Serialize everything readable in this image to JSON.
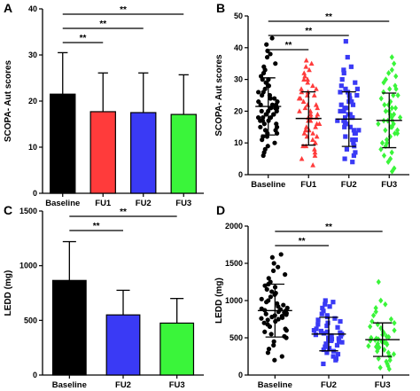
{
  "chart_data": [
    {
      "panel": "A",
      "type": "bar",
      "ylabel": "SCOPA- Aut scores",
      "categories": [
        "Baseline",
        "FU1",
        "FU2",
        "FU3"
      ],
      "values": [
        21.5,
        17.7,
        17.5,
        17.1
      ],
      "errors": [
        9.0,
        8.4,
        8.6,
        8.6
      ],
      "colors": [
        "#000000",
        "#ff3b3b",
        "#3a3af5",
        "#3af53a"
      ],
      "ylim": [
        0,
        40
      ],
      "yticks": [
        0,
        10,
        20,
        30,
        40
      ],
      "significance": [
        {
          "from": 0,
          "to": 1,
          "label": "**"
        },
        {
          "from": 0,
          "to": 2,
          "label": "**"
        },
        {
          "from": 0,
          "to": 3,
          "label": "**"
        }
      ]
    },
    {
      "panel": "B",
      "type": "scatter",
      "ylabel": "SCOPA- Aut scores",
      "categories": [
        "Baseline",
        "FU1",
        "FU2",
        "FU3"
      ],
      "means": [
        21.5,
        17.7,
        17.5,
        17.1
      ],
      "sd": [
        9.0,
        8.4,
        8.6,
        8.6
      ],
      "colors": [
        "#000000",
        "#ff3b3b",
        "#3a3af5",
        "#3af53a"
      ],
      "markers": [
        "circle",
        "triangle",
        "square",
        "diamond"
      ],
      "ylim": [
        0,
        50
      ],
      "yticks": [
        0,
        10,
        20,
        30,
        40,
        50
      ],
      "series": [
        {
          "name": "Baseline",
          "values": [
            43,
            41,
            39,
            38,
            37,
            35,
            34,
            33,
            32,
            31,
            30,
            30,
            29,
            28,
            28,
            27,
            26,
            26,
            25,
            25,
            24,
            24,
            23,
            23,
            22,
            22,
            22,
            21,
            21,
            21,
            20,
            20,
            20,
            19,
            19,
            19,
            18,
            18,
            18,
            17,
            17,
            17,
            16,
            16,
            15,
            15,
            14,
            14,
            13,
            13,
            12,
            12,
            11,
            10,
            9,
            8,
            7,
            6
          ]
        },
        {
          "name": "FU1",
          "values": [
            36,
            35,
            34,
            33,
            32,
            31,
            30,
            30,
            29,
            28,
            27,
            27,
            26,
            26,
            25,
            25,
            24,
            24,
            23,
            22,
            22,
            21,
            21,
            20,
            20,
            19,
            19,
            18,
            18,
            18,
            17,
            17,
            16,
            16,
            15,
            15,
            14,
            14,
            13,
            13,
            12,
            12,
            11,
            10,
            10,
            9,
            9,
            8,
            7,
            6,
            5,
            3
          ]
        },
        {
          "name": "FU2",
          "values": [
            42,
            37,
            34,
            33,
            32,
            30,
            29,
            28,
            27,
            27,
            26,
            26,
            25,
            25,
            24,
            23,
            23,
            22,
            22,
            21,
            21,
            20,
            20,
            19,
            19,
            18,
            18,
            18,
            17,
            17,
            17,
            16,
            16,
            15,
            15,
            14,
            14,
            13,
            13,
            12,
            11,
            11,
            10,
            9,
            8,
            7,
            6,
            5,
            4
          ]
        },
        {
          "name": "FU3",
          "values": [
            37,
            35,
            33,
            32,
            31,
            30,
            29,
            28,
            27,
            27,
            26,
            25,
            25,
            24,
            23,
            22,
            22,
            21,
            21,
            20,
            20,
            19,
            19,
            18,
            18,
            17,
            17,
            17,
            16,
            16,
            15,
            15,
            14,
            14,
            13,
            13,
            12,
            11,
            10,
            10,
            9,
            8,
            7,
            6,
            5,
            4,
            2,
            1
          ]
        }
      ],
      "significance": [
        {
          "from": 0,
          "to": 1,
          "label": "**"
        },
        {
          "from": 0,
          "to": 2,
          "label": "**"
        },
        {
          "from": 0,
          "to": 3,
          "label": "**"
        }
      ]
    },
    {
      "panel": "C",
      "type": "bar",
      "ylabel": "LEDD (mg)",
      "categories": [
        "Baseline",
        "FU2",
        "FU3"
      ],
      "values": [
        865,
        550,
        475
      ],
      "errors": [
        355,
        225,
        225
      ],
      "colors": [
        "#000000",
        "#3a3af5",
        "#3af53a"
      ],
      "ylim": [
        0,
        1500
      ],
      "yticks": [
        0,
        500,
        1000,
        1500
      ],
      "significance": [
        {
          "from": 0,
          "to": 1,
          "label": "**"
        },
        {
          "from": 0,
          "to": 2,
          "label": "**"
        }
      ]
    },
    {
      "panel": "D",
      "type": "scatter",
      "ylabel": "LEDD (mg)",
      "categories": [
        "Baseline",
        "FU2",
        "FU3"
      ],
      "means": [
        865,
        550,
        475
      ],
      "sd": [
        355,
        225,
        225
      ],
      "colors": [
        "#000000",
        "#3a3af5",
        "#3af53a"
      ],
      "markers": [
        "circle",
        "square",
        "diamond"
      ],
      "ylim": [
        0,
        2000
      ],
      "yticks": [
        0,
        500,
        1000,
        1500,
        2000
      ],
      "series": [
        {
          "name": "Baseline",
          "values": [
            1620,
            1580,
            1500,
            1450,
            1400,
            1350,
            1300,
            1250,
            1220,
            1200,
            1180,
            1150,
            1120,
            1100,
            1080,
            1050,
            1020,
            1000,
            980,
            960,
            940,
            920,
            900,
            890,
            880,
            870,
            860,
            850,
            840,
            830,
            820,
            810,
            800,
            790,
            780,
            770,
            760,
            750,
            740,
            720,
            700,
            680,
            650,
            620,
            600,
            580,
            550,
            520,
            500,
            450,
            400,
            350,
            300,
            250,
            200
          ]
        },
        {
          "name": "FU2",
          "values": [
            1000,
            980,
            950,
            920,
            900,
            860,
            820,
            800,
            780,
            760,
            740,
            720,
            700,
            680,
            660,
            640,
            620,
            600,
            590,
            580,
            570,
            560,
            550,
            540,
            530,
            520,
            510,
            500,
            490,
            480,
            470,
            460,
            450,
            440,
            420,
            400,
            380,
            360,
            340,
            320,
            300,
            280,
            250,
            220,
            200,
            150
          ]
        },
        {
          "name": "FU3",
          "values": [
            1250,
            1000,
            950,
            900,
            850,
            800,
            750,
            720,
            700,
            680,
            650,
            630,
            600,
            580,
            560,
            540,
            520,
            510,
            500,
            490,
            480,
            470,
            460,
            450,
            440,
            430,
            420,
            410,
            400,
            390,
            380,
            370,
            360,
            340,
            320,
            300,
            280,
            260,
            240,
            220,
            200,
            180,
            150,
            120,
            100,
            80
          ]
        }
      ],
      "significance": [
        {
          "from": 0,
          "to": 1,
          "label": "**"
        },
        {
          "from": 0,
          "to": 2,
          "label": "**"
        }
      ]
    }
  ]
}
